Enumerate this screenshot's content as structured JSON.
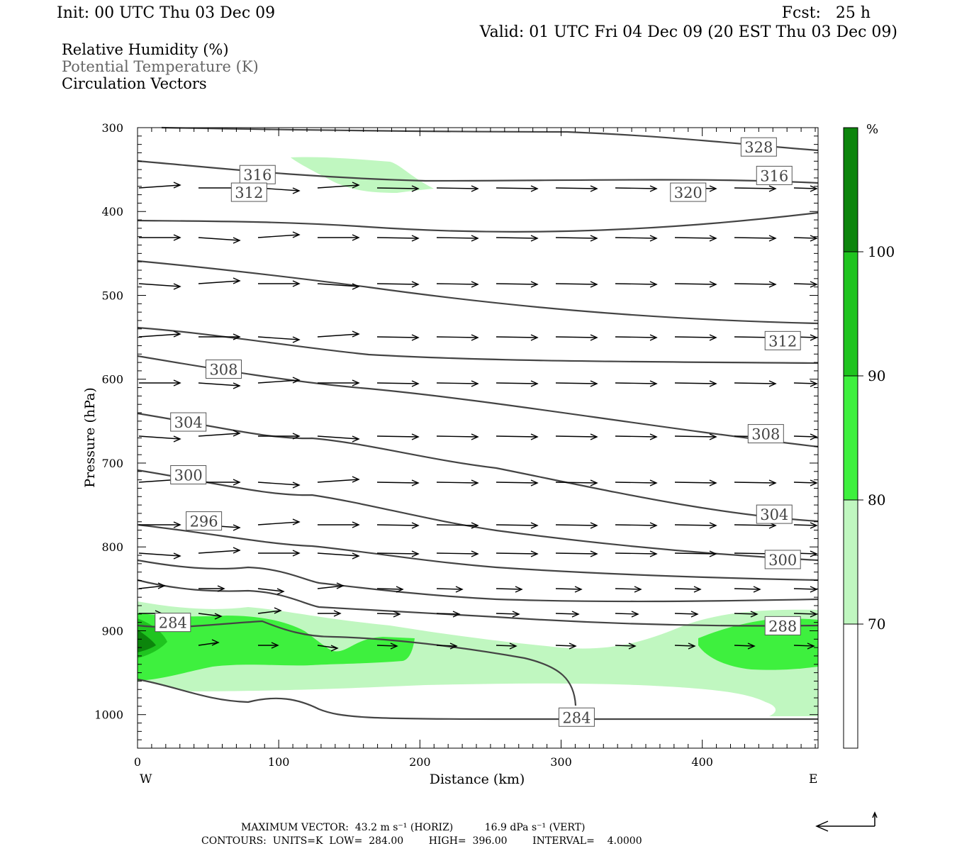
{
  "header": {
    "init": "Init: 00 UTC Thu 03 Dec 09",
    "fcst": "Fcst:   25 h",
    "valid": "Valid: 01 UTC Fri 04 Dec 09 (20 EST Thu 03 Dec 09)",
    "legend_rh": "Relative Humidity (%)",
    "legend_theta": "Potential Temperature (K)",
    "legend_vectors": "Circulation Vectors"
  },
  "footer": {
    "max_vector": "MAXIMUM VECTOR:  43.2 m s⁻¹ (HORIZ)          16.9 dPa s⁻¹ (VERT)",
    "contours": "CONTOURS:  UNITS=K  LOW=  284.00        HIGH=  396.00        INTERVAL=    4.0000"
  },
  "colors": {
    "rh70": "#c0f7c0",
    "rh80": "#3ef03e",
    "rh90": "#1fc41f",
    "rh100": "#0c850c",
    "contour": "#444444"
  },
  "chart_data": {
    "type": "cross-section",
    "xlabel": "Distance (km)",
    "ylabel": "Pressure (hPa)",
    "xlim": [
      0,
      482
    ],
    "ylim": [
      1040,
      300
    ],
    "x_ticks": [
      "0",
      "100",
      "200",
      "300",
      "400"
    ],
    "x_tick_values": [
      0,
      100,
      200,
      300,
      400
    ],
    "y_ticks": [
      "300",
      "400",
      "500",
      "600",
      "700",
      "800",
      "900",
      "1000"
    ],
    "y_tick_values": [
      300,
      400,
      500,
      600,
      700,
      800,
      900,
      1000
    ],
    "x_end_labels": {
      "left": "W",
      "right": "E"
    },
    "colorbar": {
      "unit": "%",
      "levels": [
        "70",
        "80",
        "90",
        "100"
      ],
      "level_values": [
        70,
        80,
        90,
        100
      ]
    },
    "theta_labels": [
      {
        "text": "328",
        "x": 440,
        "p": 323
      },
      {
        "text": "316",
        "x": 85,
        "p": 356
      },
      {
        "text": "320",
        "x": 390,
        "p": 377
      },
      {
        "text": "316",
        "x": 451,
        "p": 357
      },
      {
        "text": "312",
        "x": 79,
        "p": 377
      },
      {
        "text": "312",
        "x": 457,
        "p": 554
      },
      {
        "text": "308",
        "x": 61,
        "p": 588
      },
      {
        "text": "304",
        "x": 36,
        "p": 651
      },
      {
        "text": "308",
        "x": 445,
        "p": 665
      },
      {
        "text": "300",
        "x": 36,
        "p": 714
      },
      {
        "text": "304",
        "x": 451,
        "p": 761
      },
      {
        "text": "296",
        "x": 47,
        "p": 769
      },
      {
        "text": "300",
        "x": 457,
        "p": 815
      },
      {
        "text": "284",
        "x": 25,
        "p": 890
      },
      {
        "text": "288",
        "x": 457,
        "p": 894
      },
      {
        "text": "284",
        "x": 311,
        "p": 1003
      }
    ]
  }
}
